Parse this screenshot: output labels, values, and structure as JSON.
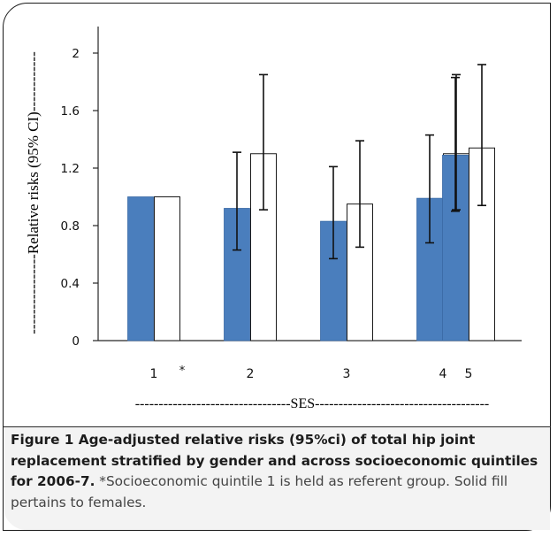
{
  "chart_data": {
    "type": "bar",
    "ylabel": "Relative risks (95% CI)",
    "xlabel": "SES",
    "ylim": [
      0,
      2
    ],
    "yticks": [
      "0",
      "0.4",
      "0.8",
      "1.2",
      "1.6",
      "2"
    ],
    "categories": [
      "1",
      "2",
      "3",
      "4",
      "5"
    ],
    "category_note": "*",
    "series": [
      {
        "fill": "#4a7ebd",
        "values": [
          1.0,
          0.92,
          0.83,
          0.99,
          1.29
        ],
        "ci_low": [
          null,
          0.63,
          0.57,
          0.68,
          0.9
        ],
        "ci_high": [
          null,
          1.31,
          1.21,
          1.43,
          1.83
        ]
      },
      {
        "fill": "#ffffff",
        "values": [
          1.0,
          1.3,
          0.95,
          1.3,
          1.34
        ],
        "ci_low": [
          null,
          0.91,
          0.65,
          0.91,
          0.94
        ],
        "ci_high": [
          null,
          1.85,
          1.39,
          1.85,
          1.92
        ]
      }
    ],
    "grid": false
  },
  "caption": {
    "label": "Figure 1",
    "title": "Age-adjusted relative risks (95%ci) of total hip joint replacement stratified by gender and across socioeconomic quintiles for 2006-7.",
    "text": "*Socioeconomic quintile 1 is held as referent group. Solid fill pertains to females."
  },
  "colors": {
    "female_fill": "#4a7ebd",
    "male_fill": "#ffffff",
    "axis": "#262626"
  }
}
